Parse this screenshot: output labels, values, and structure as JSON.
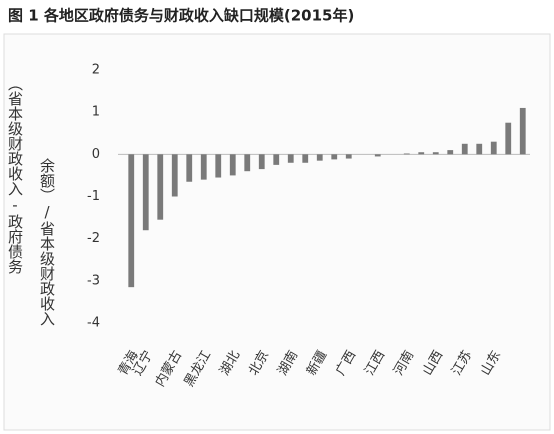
{
  "chart_data": {
    "type": "bar",
    "title": "图 1 各地区政府债务与财政收入缺口规模(2015年)",
    "ylabel": [
      "（省本级财政收入-政府债务",
      "余额）/省本级财政收入"
    ],
    "categories": [
      "青海",
      "辽宁",
      null,
      "内蒙古",
      null,
      "黑龙江",
      null,
      "湖北",
      null,
      "北京",
      null,
      "湖南",
      null,
      "新疆",
      null,
      "广西",
      null,
      "江西",
      null,
      "河南",
      null,
      "山西",
      null,
      "江苏",
      null,
      "山东",
      null,
      null
    ],
    "values": [
      -3.15,
      -1.8,
      -1.55,
      -1.0,
      -0.65,
      -0.6,
      -0.55,
      -0.5,
      -0.4,
      -0.35,
      -0.25,
      -0.2,
      -0.2,
      -0.15,
      -0.12,
      -0.1,
      0,
      -0.05,
      0,
      0.02,
      0.05,
      0.05,
      0.1,
      0.25,
      0.25,
      0.3,
      0.75,
      1.1
    ],
    "color": "#7a7a7a",
    "ylim": [
      -4,
      2
    ],
    "yticks": [
      -4,
      -3,
      -2,
      -1,
      0,
      1,
      2
    ],
    "grid": false
  }
}
